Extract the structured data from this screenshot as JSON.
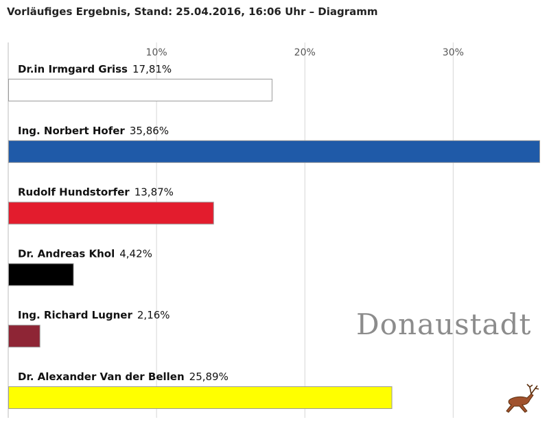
{
  "title": "Vorläufiges Ergebnis, Stand: 25.04.2016, 16:06 Uhr – Diagramm",
  "watermark": "Donaustadt",
  "logo_icon": "deer-icon",
  "chart_data": {
    "type": "bar",
    "orientation": "horizontal",
    "title": "Vorläufiges Ergebnis, Stand: 25.04.2016, 16:06 Uhr – Diagramm",
    "xlabel": "",
    "ylabel": "",
    "xlim": [
      0,
      35.86
    ],
    "xticks": [
      10,
      20,
      30
    ],
    "xtick_labels": [
      "10%",
      "20%",
      "30%"
    ],
    "grid": true,
    "categories": [
      "Dr.in Irmgard Griss",
      "Ing. Norbert Hofer",
      "Rudolf Hundstorfer",
      "Dr. Andreas Khol",
      "Ing. Richard Lugner",
      "Dr. Alexander Van der Bellen"
    ],
    "values": [
      17.81,
      35.86,
      13.87,
      4.42,
      2.16,
      25.89
    ],
    "value_labels": [
      "17,81%",
      "35,86%",
      "13,87%",
      "4,42%",
      "2,16%",
      "25,89%"
    ],
    "colors": [
      "#ffffff",
      "#1f5aa8",
      "#e31c2d",
      "#000000",
      "#8e2535",
      "#ffff00"
    ]
  }
}
